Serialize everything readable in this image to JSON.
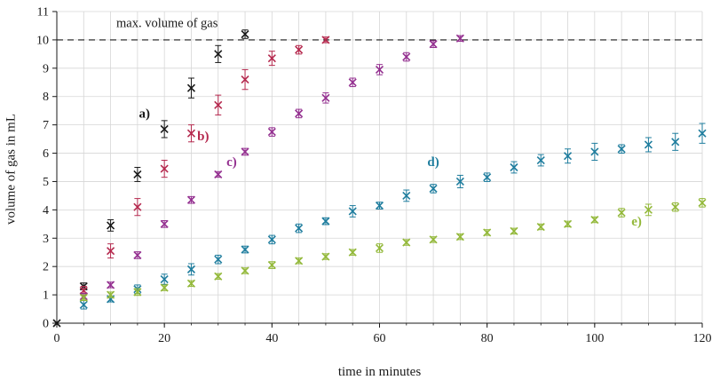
{
  "chart_data": {
    "type": "scatter",
    "title": "",
    "xlabel": "time in minutes",
    "ylabel": "volume of gas in mL",
    "xlim": [
      0,
      120
    ],
    "ylim": [
      0,
      11
    ],
    "x_major_ticks": [
      0,
      20,
      40,
      60,
      80,
      100,
      120
    ],
    "y_major_ticks": [
      0,
      1,
      2,
      3,
      4,
      5,
      6,
      7,
      8,
      9,
      10,
      11
    ],
    "x_grid_step": 5,
    "y_grid_step": 1,
    "grid": true,
    "legend_position": "none",
    "marker": "x",
    "error_bars": true,
    "colors": {
      "grid": "#d6d6d6",
      "axis": "#1a1a1a"
    },
    "reference_line": {
      "y": 10,
      "style": "dashed",
      "label": "max. volume of gas",
      "label_x": 20.5,
      "label_y": 10.45
    },
    "series": [
      {
        "name": "a)",
        "color": "#1a1a1a",
        "points": [
          [
            0,
            0,
            0
          ],
          [
            5,
            1.3,
            0.12
          ],
          [
            10,
            3.45,
            0.2
          ],
          [
            15,
            5.25,
            0.25
          ],
          [
            20,
            6.85,
            0.3
          ],
          [
            25,
            8.3,
            0.35
          ],
          [
            30,
            9.5,
            0.3
          ],
          [
            35,
            10.2,
            0.15
          ]
        ]
      },
      {
        "name": "b)",
        "color": "#b5294e",
        "points": [
          [
            5,
            1.15,
            0.15
          ],
          [
            10,
            2.55,
            0.25
          ],
          [
            15,
            4.1,
            0.3
          ],
          [
            20,
            5.45,
            0.3
          ],
          [
            25,
            6.7,
            0.3
          ],
          [
            30,
            7.7,
            0.35
          ],
          [
            35,
            8.6,
            0.35
          ],
          [
            40,
            9.35,
            0.25
          ],
          [
            45,
            9.65,
            0.15
          ],
          [
            50,
            10.0,
            0.1
          ]
        ]
      },
      {
        "name": "c)",
        "color": "#943090",
        "points": [
          [
            5,
            0.95,
            0.1
          ],
          [
            10,
            1.35,
            0.1
          ],
          [
            15,
            2.4,
            0.12
          ],
          [
            20,
            3.5,
            0.12
          ],
          [
            25,
            4.35,
            0.12
          ],
          [
            30,
            5.25,
            0.1
          ],
          [
            35,
            6.05,
            0.12
          ],
          [
            40,
            6.75,
            0.15
          ],
          [
            45,
            7.4,
            0.15
          ],
          [
            50,
            7.95,
            0.18
          ],
          [
            55,
            8.5,
            0.15
          ],
          [
            60,
            8.95,
            0.18
          ],
          [
            65,
            9.4,
            0.15
          ],
          [
            70,
            9.85,
            0.12
          ],
          [
            75,
            10.05,
            0.1
          ]
        ]
      },
      {
        "name": "d)",
        "color": "#1f7d9e",
        "points": [
          [
            5,
            0.65,
            0.15
          ],
          [
            10,
            0.85,
            0.1
          ],
          [
            15,
            1.2,
            0.15
          ],
          [
            20,
            1.55,
            0.18
          ],
          [
            25,
            1.9,
            0.2
          ],
          [
            30,
            2.25,
            0.15
          ],
          [
            35,
            2.6,
            0.12
          ],
          [
            40,
            2.95,
            0.15
          ],
          [
            45,
            3.35,
            0.15
          ],
          [
            50,
            3.6,
            0.12
          ],
          [
            55,
            3.95,
            0.2
          ],
          [
            60,
            4.15,
            0.12
          ],
          [
            65,
            4.5,
            0.2
          ],
          [
            70,
            4.75,
            0.15
          ],
          [
            75,
            5.0,
            0.22
          ],
          [
            80,
            5.15,
            0.15
          ],
          [
            85,
            5.5,
            0.2
          ],
          [
            90,
            5.75,
            0.2
          ],
          [
            95,
            5.9,
            0.25
          ],
          [
            100,
            6.05,
            0.3
          ],
          [
            105,
            6.15,
            0.15
          ],
          [
            110,
            6.3,
            0.25
          ],
          [
            115,
            6.4,
            0.3
          ],
          [
            120,
            6.7,
            0.35
          ]
        ]
      },
      {
        "name": "e)",
        "color": "#93b83a",
        "points": [
          [
            5,
            0.9,
            0.1
          ],
          [
            10,
            1.0,
            0.1
          ],
          [
            15,
            1.1,
            0.12
          ],
          [
            20,
            1.25,
            0.1
          ],
          [
            25,
            1.4,
            0.1
          ],
          [
            30,
            1.65,
            0.1
          ],
          [
            35,
            1.85,
            0.1
          ],
          [
            40,
            2.05,
            0.12
          ],
          [
            45,
            2.2,
            0.1
          ],
          [
            50,
            2.35,
            0.1
          ],
          [
            55,
            2.5,
            0.1
          ],
          [
            60,
            2.65,
            0.15
          ],
          [
            65,
            2.85,
            0.1
          ],
          [
            70,
            2.95,
            0.1
          ],
          [
            75,
            3.05,
            0.1
          ],
          [
            80,
            3.2,
            0.1
          ],
          [
            85,
            3.25,
            0.1
          ],
          [
            90,
            3.4,
            0.1
          ],
          [
            95,
            3.5,
            0.1
          ],
          [
            100,
            3.65,
            0.1
          ],
          [
            105,
            3.9,
            0.15
          ],
          [
            110,
            4.0,
            0.2
          ],
          [
            115,
            4.1,
            0.15
          ],
          [
            120,
            4.25,
            0.15
          ]
        ]
      }
    ],
    "series_labels": [
      {
        "text": "a)",
        "x": 16.3,
        "y": 7.25,
        "color": "#1a1a1a"
      },
      {
        "text": "b)",
        "x": 27.2,
        "y": 6.45,
        "color": "#b5294e"
      },
      {
        "text": "c)",
        "x": 32.5,
        "y": 5.55,
        "color": "#943090"
      },
      {
        "text": "d)",
        "x": 70.0,
        "y": 5.55,
        "color": "#1f7d9e"
      },
      {
        "text": "e)",
        "x": 107.8,
        "y": 3.45,
        "color": "#93b83a"
      }
    ]
  }
}
